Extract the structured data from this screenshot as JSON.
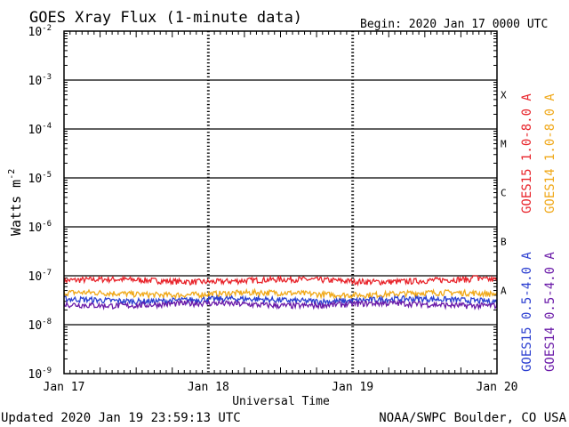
{
  "chart_data": {
    "type": "line",
    "title": "GOES Xray Flux (1-minute data)",
    "begin_label": "Begin:  2020 Jan 17 0000 UTC",
    "ylabel_text": "Watts m",
    "ylabel_sup": "-2",
    "xlabel": "Universal Time",
    "updated": "Updated 2020 Jan 19 23:59:13 UTC",
    "credit": "NOAA/SWPC Boulder, CO USA",
    "y_scale": "log",
    "ylim": [
      1e-09,
      0.01
    ],
    "y_ticks": [
      {
        "base": "10",
        "exp": "-2"
      },
      {
        "base": "10",
        "exp": "-3"
      },
      {
        "base": "10",
        "exp": "-4"
      },
      {
        "base": "10",
        "exp": "-5"
      },
      {
        "base": "10",
        "exp": "-6"
      },
      {
        "base": "10",
        "exp": "-7"
      },
      {
        "base": "10",
        "exp": "-8"
      },
      {
        "base": "10",
        "exp": "-9"
      }
    ],
    "x_ticks": [
      "Jan 17",
      "Jan 18",
      "Jan 19",
      "Jan 20"
    ],
    "flare_classes": [
      "X",
      "M",
      "C",
      "B",
      "A"
    ],
    "legend_placement": "right",
    "series": [
      {
        "name": "GOES15 1.0-8.0 A",
        "color": "#e8232a",
        "level": 8e-08,
        "bump_at": 2.85,
        "bump_peak": 1e-07
      },
      {
        "name": "GOES14 1.0-8.0 A",
        "color": "#f0a818",
        "level": 4.3e-08
      },
      {
        "name": "GOES15 0.5-4.0 A",
        "color": "#2b3ed0",
        "level": 3.2e-08
      },
      {
        "name": "GOES14 0.5-4.0 A",
        "color": "#6a1aa8",
        "level": 2.6e-08
      }
    ]
  }
}
